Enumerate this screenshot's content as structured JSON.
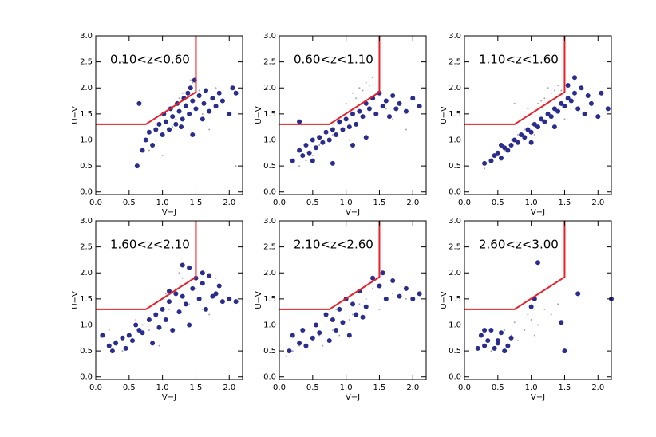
{
  "chart_data": [
    {
      "type": "scatter",
      "title": "0.10<z<0.60",
      "xlabel": "V−J",
      "ylabel": "U−V",
      "xlim": [
        0,
        2.2
      ],
      "ylim": [
        -0.05,
        3.0
      ],
      "xticks": [
        {
          "value": 0,
          "label": "0.0"
        },
        0.5,
        {
          "value": 1,
          "label": "1.0"
        },
        1.5,
        {
          "value": 2,
          "label": "2.0"
        }
      ],
      "yticks": [
        {
          "value": 0,
          "label": "0.0"
        },
        0.5,
        {
          "value": 1,
          "label": "1.0"
        },
        1.5,
        {
          "value": 2,
          "label": "2.0"
        },
        2.5,
        {
          "value": 3,
          "label": "3.0"
        }
      ],
      "series": [
        {
          "kind": "points",
          "size": 1,
          "color": "#a3a6b8",
          "x": [
            0.9,
            1.1,
            1.25,
            1.3,
            1.4,
            1.45,
            1.5,
            1.35,
            1.2,
            1.0,
            1.6,
            1.7,
            1.8,
            0.8,
            1.55,
            1.15,
            2.1,
            0.4,
            1.38,
            1.42
          ],
          "values": [
            1.0,
            1.6,
            1.8,
            1.9,
            2.0,
            2.1,
            2.05,
            1.7,
            1.4,
            0.7,
            1.5,
            1.2,
            2.0,
            0.8,
            1.95,
            1.25,
            0.5,
            2.5,
            1.85,
            2.15
          ]
        },
        {
          "kind": "points",
          "size": 3,
          "color": "#2a2d8c",
          "x": [
            0.62,
            0.7,
            0.75,
            0.8,
            0.85,
            0.9,
            0.95,
            1.0,
            1.02,
            1.05,
            1.1,
            1.12,
            1.15,
            1.2,
            1.22,
            1.25,
            1.3,
            1.32,
            1.35,
            1.38,
            1.4,
            1.42,
            1.45,
            1.48,
            1.5,
            1.55,
            1.6,
            1.62,
            1.65,
            1.7,
            1.75,
            1.8,
            1.85,
            1.9,
            2.0,
            2.05,
            2.1,
            0.65,
            1.28,
            1.45
          ],
          "values": [
            0.5,
            0.8,
            1.0,
            1.15,
            0.9,
            1.2,
            1.3,
            1.1,
            1.5,
            1.35,
            1.2,
            1.6,
            1.45,
            1.3,
            1.7,
            1.55,
            1.4,
            1.8,
            1.65,
            1.9,
            1.5,
            2.0,
            1.75,
            2.15,
            1.6,
            1.85,
            1.4,
            1.7,
            1.95,
            1.55,
            1.8,
            1.65,
            1.9,
            1.75,
            1.5,
            2.0,
            1.9,
            1.7,
            1.25,
            1.1
          ]
        },
        {
          "kind": "line",
          "color": "#e8202a",
          "x": [
            0,
            0.75,
            1.5,
            1.5
          ],
          "values": [
            1.3,
            1.3,
            1.92,
            3.0
          ]
        }
      ]
    },
    {
      "type": "scatter",
      "title": "0.60<z<1.10",
      "xlabel": "V−J",
      "ylabel": "U−V",
      "xlim": [
        0,
        2.2
      ],
      "ylim": [
        -0.05,
        3.0
      ],
      "xticks": [
        {
          "value": 0,
          "label": "0.0"
        },
        0.5,
        {
          "value": 1,
          "label": "1.0"
        },
        1.5,
        {
          "value": 2,
          "label": "2.0"
        }
      ],
      "yticks": [
        {
          "value": 0,
          "label": "0.0"
        },
        0.5,
        {
          "value": 1,
          "label": "1.0"
        },
        1.5,
        {
          "value": 2,
          "label": "2.0"
        },
        2.5,
        {
          "value": 3,
          "label": "3.0"
        }
      ],
      "series": [
        {
          "kind": "points",
          "size": 1,
          "color": "#a3a6b8",
          "x": [
            1.0,
            1.1,
            1.2,
            1.3,
            1.4,
            1.25,
            1.35,
            1.15,
            0.6,
            0.4,
            0.8,
            1.5,
            1.45,
            0.9,
            0.3,
            1.7,
            1.9,
            1.05,
            1.6,
            0.5
          ],
          "values": [
            1.7,
            1.9,
            2.0,
            2.1,
            2.2,
            1.95,
            2.05,
            1.8,
            0.9,
            0.6,
            1.1,
            2.15,
            1.9,
            1.3,
            0.5,
            1.4,
            1.2,
            1.0,
            1.6,
            0.7
          ]
        },
        {
          "kind": "points",
          "size": 3,
          "color": "#2a2d8c",
          "x": [
            0.2,
            0.3,
            0.35,
            0.4,
            0.45,
            0.5,
            0.55,
            0.6,
            0.65,
            0.7,
            0.75,
            0.8,
            0.85,
            0.9,
            0.95,
            1.0,
            1.05,
            1.1,
            1.15,
            1.2,
            1.25,
            1.3,
            1.35,
            1.4,
            1.45,
            1.5,
            1.55,
            1.6,
            1.65,
            1.7,
            1.75,
            1.8,
            1.9,
            2.0,
            2.1,
            0.5,
            0.8,
            1.1,
            1.3,
            0.3
          ],
          "values": [
            0.6,
            0.8,
            0.7,
            0.9,
            0.75,
            1.0,
            0.85,
            1.05,
            0.95,
            1.15,
            1.0,
            1.2,
            1.1,
            1.35,
            1.2,
            1.4,
            1.25,
            1.5,
            1.3,
            1.55,
            1.45,
            1.7,
            1.6,
            1.8,
            1.5,
            1.9,
            1.65,
            1.75,
            1.45,
            1.85,
            1.6,
            1.7,
            1.55,
            1.8,
            1.65,
            0.6,
            0.55,
            0.9,
            1.05,
            1.35
          ]
        },
        {
          "kind": "line",
          "color": "#e8202a",
          "x": [
            0,
            0.75,
            1.5,
            1.5
          ],
          "values": [
            1.3,
            1.3,
            1.92,
            3.0
          ]
        }
      ]
    },
    {
      "type": "scatter",
      "title": "1.10<z<1.60",
      "xlabel": "V−J",
      "ylabel": "U−V",
      "xlim": [
        0,
        2.2
      ],
      "ylim": [
        -0.05,
        3.0
      ],
      "xticks": [
        {
          "value": 0,
          "label": "0.0"
        },
        0.5,
        {
          "value": 1,
          "label": "1.0"
        },
        1.5,
        {
          "value": 2,
          "label": "2.0"
        }
      ],
      "yticks": [
        {
          "value": 0,
          "label": "0.0"
        },
        0.5,
        {
          "value": 1,
          "label": "1.0"
        },
        1.5,
        {
          "value": 2,
          "label": "2.0"
        },
        2.5,
        {
          "value": 3,
          "label": "3.0"
        }
      ],
      "series": [
        {
          "kind": "points",
          "size": 1,
          "color": "#a3a6b8",
          "x": [
            0.6,
            0.7,
            0.8,
            0.9,
            1.0,
            1.1,
            1.2,
            1.3,
            1.25,
            1.35,
            1.4,
            0.5,
            0.4,
            1.5,
            1.45,
            0.75,
            0.95,
            1.15,
            0.3,
            1.05
          ],
          "values": [
            0.8,
            1.0,
            1.1,
            1.2,
            1.3,
            1.7,
            1.8,
            1.9,
            2.0,
            1.95,
            2.05,
            0.7,
            0.6,
            1.4,
            1.95,
            1.7,
            1.6,
            1.75,
            0.45,
            1.1
          ]
        },
        {
          "kind": "points",
          "size": 3,
          "color": "#2a2d8c",
          "x": [
            0.3,
            0.4,
            0.45,
            0.5,
            0.55,
            0.6,
            0.65,
            0.7,
            0.75,
            0.8,
            0.85,
            0.9,
            0.95,
            1.0,
            1.05,
            1.1,
            1.15,
            1.2,
            1.25,
            1.3,
            1.35,
            1.4,
            1.45,
            1.5,
            1.55,
            1.6,
            1.65,
            1.7,
            1.75,
            1.8,
            1.85,
            1.9,
            2.0,
            2.05,
            2.15,
            1.55,
            1.65,
            1.35,
            0.55,
            1.0
          ],
          "values": [
            0.55,
            0.6,
            0.7,
            0.75,
            0.65,
            0.85,
            0.8,
            0.9,
            1.0,
            0.95,
            1.1,
            1.05,
            1.2,
            1.15,
            1.3,
            1.25,
            1.4,
            1.35,
            1.5,
            1.45,
            1.6,
            1.55,
            1.7,
            1.65,
            1.8,
            1.75,
            1.9,
            1.6,
            2.0,
            1.5,
            1.85,
            1.7,
            1.45,
            1.9,
            1.6,
            2.05,
            2.2,
            1.25,
            0.9,
            0.95
          ]
        },
        {
          "kind": "line",
          "color": "#e8202a",
          "x": [
            0,
            0.75,
            1.5,
            1.5
          ],
          "values": [
            1.3,
            1.3,
            1.92,
            3.0
          ]
        }
      ]
    },
    {
      "type": "scatter",
      "title": "1.60<z<2.10",
      "xlabel": "V−J",
      "ylabel": "U−V",
      "xlim": [
        0,
        2.2
      ],
      "ylim": [
        -0.05,
        3.0
      ],
      "xticks": [
        {
          "value": 0,
          "label": "0.0"
        },
        0.5,
        {
          "value": 1,
          "label": "1.0"
        },
        1.5,
        {
          "value": 2,
          "label": "2.0"
        }
      ],
      "yticks": [
        {
          "value": 0,
          "label": "0.0"
        },
        0.5,
        {
          "value": 1,
          "label": "1.0"
        },
        1.5,
        {
          "value": 2,
          "label": "2.0"
        },
        2.5,
        {
          "value": 3,
          "label": "3.0"
        }
      ],
      "series": [
        {
          "kind": "points",
          "size": 1,
          "color": "#a3a6b8",
          "x": [
            0.3,
            0.5,
            0.7,
            0.9,
            1.0,
            1.2,
            1.3,
            1.1,
            0.8,
            0.6,
            1.4,
            1.5,
            1.6,
            1.7,
            0.4,
            1.25,
            0.95,
            1.8,
            0.2,
            1.05
          ],
          "values": [
            0.7,
            0.8,
            1.0,
            1.2,
            1.5,
            1.7,
            1.9,
            1.3,
            0.9,
            1.1,
            1.4,
            1.7,
            1.3,
            1.2,
            0.5,
            2.0,
            0.6,
            1.9,
            0.9,
            1.6
          ]
        },
        {
          "kind": "points",
          "size": 3,
          "color": "#2a2d8c",
          "x": [
            0.1,
            0.2,
            0.25,
            0.3,
            0.4,
            0.45,
            0.5,
            0.55,
            0.6,
            0.7,
            0.8,
            0.85,
            0.9,
            0.95,
            1.0,
            1.05,
            1.1,
            1.15,
            1.2,
            1.25,
            1.3,
            1.35,
            1.4,
            1.45,
            1.5,
            1.55,
            1.6,
            1.65,
            1.7,
            1.75,
            1.8,
            1.85,
            1.9,
            2.0,
            2.1,
            1.3,
            1.4,
            0.65,
            1.6,
            1.1
          ],
          "values": [
            0.8,
            0.6,
            0.5,
            0.65,
            0.75,
            0.55,
            0.8,
            0.7,
            1.0,
            0.85,
            1.1,
            0.65,
            1.2,
            0.95,
            1.3,
            1.1,
            1.45,
            0.9,
            1.6,
            1.25,
            2.15,
            1.4,
            2.1,
            1.7,
            1.9,
            1.5,
            1.8,
            1.3,
            1.95,
            1.55,
            1.6,
            1.75,
            1.45,
            1.5,
            1.45,
            1.55,
            1.0,
            0.9,
            2.0,
            1.65
          ]
        },
        {
          "kind": "line",
          "color": "#e8202a",
          "x": [
            0,
            0.75,
            1.5,
            1.5
          ],
          "values": [
            1.3,
            1.3,
            1.92,
            3.0
          ]
        }
      ]
    },
    {
      "type": "scatter",
      "title": "2.10<z<2.60",
      "xlabel": "V−J",
      "ylabel": "U−V",
      "xlim": [
        0,
        2.2
      ],
      "ylim": [
        -0.05,
        3.0
      ],
      "xticks": [
        {
          "value": 0,
          "label": "0.0"
        },
        0.5,
        {
          "value": 1,
          "label": "1.0"
        },
        1.5,
        {
          "value": 2,
          "label": "2.0"
        }
      ],
      "yticks": [
        {
          "value": 0,
          "label": "0.0"
        },
        0.5,
        {
          "value": 1,
          "label": "1.0"
        },
        1.5,
        {
          "value": 2,
          "label": "2.0"
        },
        2.5,
        {
          "value": 3,
          "label": "3.0"
        }
      ],
      "series": [
        {
          "kind": "points",
          "size": 1,
          "color": "#a3a6b8",
          "x": [
            0.2,
            0.3,
            0.5,
            0.6,
            0.8,
            1.0,
            1.1,
            1.2,
            0.4,
            0.7,
            0.9,
            1.3,
            1.5,
            1.7,
            1.9,
            0.1,
            0.65,
            1.05,
            1.4,
            0.85
          ],
          "values": [
            0.5,
            0.6,
            0.7,
            0.8,
            0.9,
            1.0,
            1.2,
            1.4,
            0.55,
            1.0,
            0.8,
            1.5,
            1.3,
            1.6,
            1.5,
            0.4,
            0.6,
            1.1,
            1.7,
            1.3
          ]
        },
        {
          "kind": "points",
          "size": 3,
          "color": "#2a2d8c",
          "x": [
            0.15,
            0.2,
            0.3,
            0.35,
            0.4,
            0.5,
            0.55,
            0.6,
            0.7,
            0.75,
            0.8,
            0.85,
            0.9,
            0.95,
            1.0,
            1.05,
            1.1,
            1.15,
            1.2,
            1.3,
            1.4,
            1.5,
            1.55,
            1.6,
            1.7,
            1.8,
            1.9,
            2.0,
            2.1,
            1.25
          ],
          "values": [
            0.5,
            0.8,
            0.65,
            0.9,
            0.6,
            0.75,
            1.0,
            0.85,
            1.2,
            0.7,
            1.1,
            0.9,
            1.3,
            1.05,
            1.5,
            0.8,
            1.4,
            1.2,
            1.65,
            1.35,
            1.9,
            1.75,
            2.0,
            1.5,
            1.85,
            1.55,
            1.7,
            1.5,
            1.6,
            1.15
          ]
        },
        {
          "kind": "line",
          "color": "#e8202a",
          "x": [
            0,
            0.75,
            1.5,
            1.5
          ],
          "values": [
            1.3,
            1.3,
            1.92,
            3.0
          ]
        }
      ]
    },
    {
      "type": "scatter",
      "title": "2.60<z<3.00",
      "xlabel": "V−J",
      "ylabel": "U−V",
      "xlim": [
        0,
        2.2
      ],
      "ylim": [
        -0.05,
        3.0
      ],
      "xticks": [
        {
          "value": 0,
          "label": "0.0"
        },
        0.5,
        {
          "value": 1,
          "label": "1.0"
        },
        1.5,
        {
          "value": 2,
          "label": "2.0"
        }
      ],
      "yticks": [
        {
          "value": 0,
          "label": "0.0"
        },
        0.5,
        {
          "value": 1,
          "label": "1.0"
        },
        1.5,
        {
          "value": 2,
          "label": "2.0"
        },
        2.5,
        {
          "value": 3,
          "label": "3.0"
        }
      ],
      "series": [
        {
          "kind": "points",
          "size": 1,
          "color": "#a3a6b8",
          "x": [
            0.3,
            0.5,
            0.7,
            0.9,
            1.0,
            1.1,
            1.2,
            0.6,
            0.8,
            0.4,
            1.3,
            1.4,
            0.95,
            0.75,
            1.05
          ],
          "values": [
            0.6,
            0.7,
            0.8,
            0.9,
            1.1,
            1.0,
            1.3,
            0.9,
            0.7,
            0.5,
            1.2,
            1.4,
            1.2,
            1.05,
            0.8
          ]
        },
        {
          "kind": "points",
          "size": 3,
          "color": "#2a2d8c",
          "x": [
            0.2,
            0.25,
            0.3,
            0.35,
            0.4,
            0.45,
            0.5,
            0.55,
            0.6,
            0.65,
            0.7,
            0.5,
            0.3,
            1.0,
            1.05,
            1.1,
            1.45,
            1.5,
            1.7,
            2.2
          ],
          "values": [
            0.55,
            0.8,
            0.6,
            0.7,
            0.9,
            0.55,
            0.65,
            0.85,
            0.5,
            0.6,
            0.75,
            0.7,
            0.9,
            1.35,
            1.5,
            2.2,
            1.05,
            0.5,
            1.6,
            1.5
          ]
        },
        {
          "kind": "line",
          "color": "#e8202a",
          "x": [
            0,
            0.75,
            1.5,
            1.5
          ],
          "values": [
            1.3,
            1.3,
            1.92,
            3.0
          ]
        }
      ]
    }
  ]
}
